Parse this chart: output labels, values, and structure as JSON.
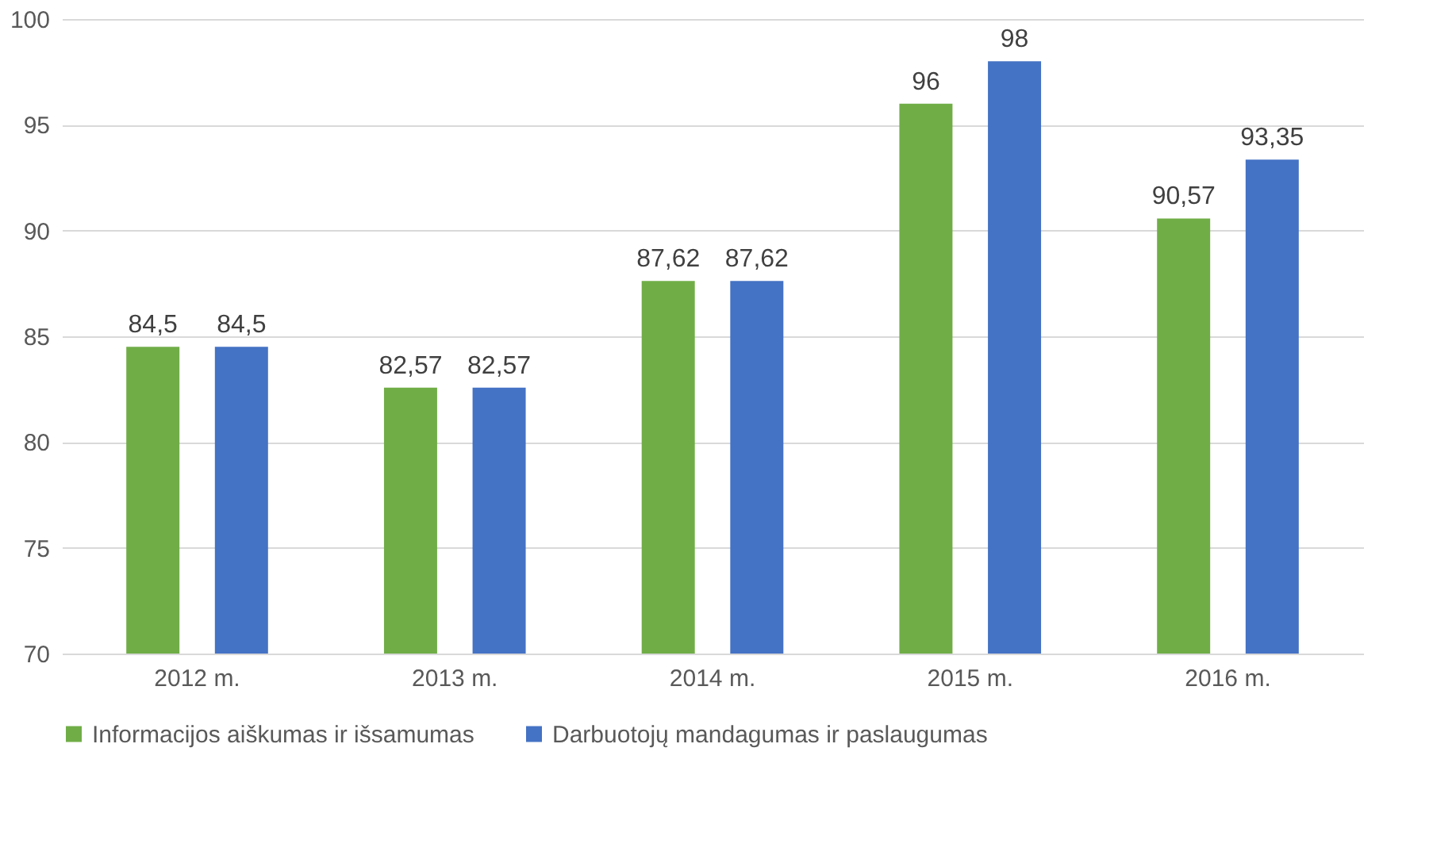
{
  "chart_data": {
    "type": "bar",
    "categories": [
      "2012 m.",
      "2013 m.",
      "2014 m.",
      "2015 m.",
      "2016 m."
    ],
    "series": [
      {
        "name": "Informacijos aiškumas ir išsamumas",
        "color": "#70ad47",
        "values": [
          84.5,
          82.57,
          87.62,
          96,
          90.57
        ],
        "value_labels": [
          "84,5",
          "82,57",
          "87,62",
          "96",
          "90,57"
        ]
      },
      {
        "name": "Darbuotojų mandagumas ir paslaugumas",
        "color": "#4472c4",
        "values": [
          84.5,
          82.57,
          87.62,
          98,
          93.35
        ],
        "value_labels": [
          "84,5",
          "82,57",
          "87,62",
          "98",
          "93,35"
        ]
      }
    ],
    "ylim": [
      70,
      100
    ],
    "yticks": [
      70,
      75,
      80,
      85,
      90,
      95,
      100
    ],
    "grid": "y",
    "legend": "bottom"
  }
}
